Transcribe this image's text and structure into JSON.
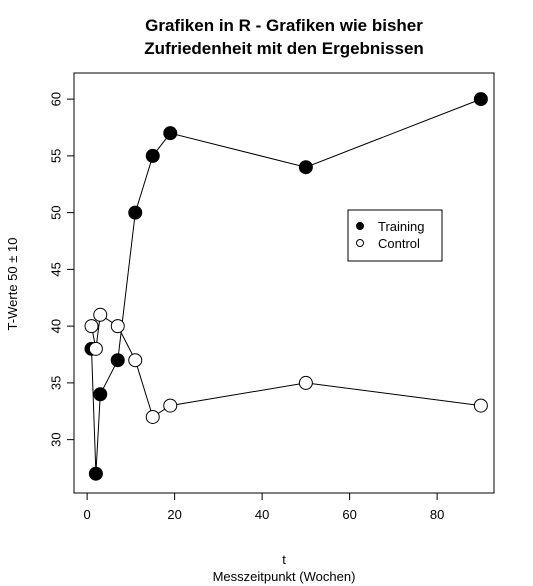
{
  "chart_data": {
    "type": "line",
    "title": "Grafiken in R - Grafiken wie bisher",
    "subtitle": "Zufriedenheit mit den Ergebnissen",
    "xlabel": "t",
    "xlabel2": "Messzeitpunkt (Wochen)",
    "ylabel": "T-Werte 50 ± 10",
    "xlim": [
      -3,
      93
    ],
    "ylim": [
      25.3,
      62.3
    ],
    "xticks": [
      0,
      20,
      40,
      60,
      80
    ],
    "yticks": [
      30,
      35,
      40,
      45,
      50,
      55,
      60
    ],
    "legend_position": "right",
    "series": [
      {
        "name": "Training",
        "marker": "filled-circle",
        "color": "#000000",
        "x": [
          1,
          2,
          3,
          7,
          11,
          15,
          19,
          50,
          90
        ],
        "y": [
          38,
          27,
          34,
          37,
          50,
          55,
          57,
          54,
          60
        ]
      },
      {
        "name": "Control",
        "marker": "open-circle",
        "color": "#000000",
        "x": [
          1,
          2,
          3,
          7,
          11,
          15,
          19,
          50,
          90
        ],
        "y": [
          40,
          38,
          41,
          40,
          37,
          32,
          33,
          35,
          33
        ]
      }
    ]
  }
}
